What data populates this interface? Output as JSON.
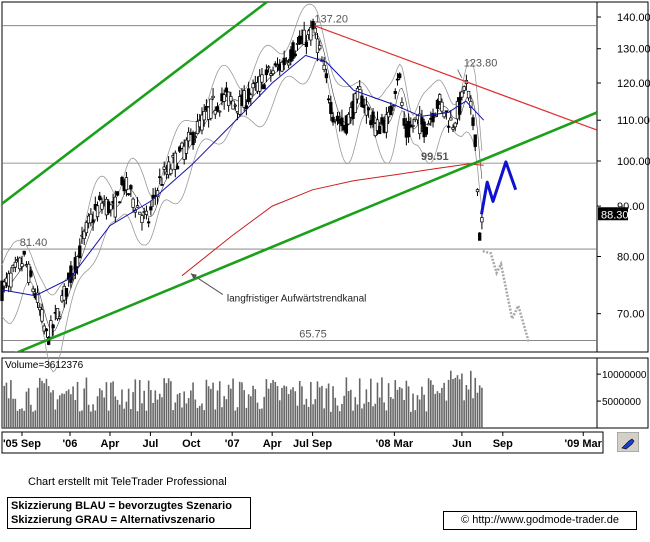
{
  "chart_data": {
    "type": "candlestick",
    "y_scale": "log",
    "ylim": [
      64,
      145
    ],
    "y_ticks": [
      "140.00",
      "130.00",
      "120.00",
      "110.00",
      "100.00",
      "90.00",
      "80.00",
      "70.00"
    ],
    "y_tick_values": [
      140,
      130,
      120,
      110,
      100,
      90,
      80,
      70
    ],
    "x_labels": [
      "'05 Sep",
      "'06",
      "Apr",
      "Jul",
      "Oct",
      "'07",
      "Apr",
      "Jul Sep",
      "'08 Mar",
      "Jun",
      "Sep",
      "'09 Mar"
    ],
    "x_label_dates": [
      "2005-09-15",
      "2006-01-01",
      "2006-04-01",
      "2006-07-01",
      "2006-10-01",
      "2007-01-01",
      "2007-04-01",
      "2007-07-01",
      "2008-01-01",
      "2008-06-01",
      "2008-09-01",
      "2009-03-01"
    ],
    "x_range": [
      "2005-08-01",
      "2009-04-01"
    ],
    "annotations": [
      {
        "label": "137.20",
        "date": "2007-07-05",
        "value": 137.2,
        "kind": "price"
      },
      {
        "label": "123.80",
        "date": "2008-06-05",
        "value": 123.8,
        "kind": "price"
      },
      {
        "label": "99.51",
        "date": "2008-03-01",
        "value": 99.51,
        "kind": "price"
      },
      {
        "label": "81.40",
        "date": "2005-09-10",
        "value": 81.4,
        "kind": "price"
      },
      {
        "label": "65.75",
        "date": "2007-06-01",
        "value": 65.75,
        "kind": "price"
      },
      {
        "label": "langfristiger Aufwärtstrendkanal",
        "date": "2006-12-20",
        "value": 71.5,
        "kind": "text"
      }
    ],
    "horizontal_lines": [
      137.2,
      81.4,
      65.75,
      99.51
    ],
    "current_price": {
      "label": "88.30",
      "value": 88.3
    },
    "trendlines": [
      {
        "name": "channel_upper",
        "color": "#1aa01a",
        "points": [
          [
            "2005-08-01",
            90.5
          ],
          [
            "2007-03-20",
            145
          ]
        ]
      },
      {
        "name": "channel_lower",
        "color": "#1aa01a",
        "points": [
          [
            "2005-08-01",
            63
          ],
          [
            "2009-04-01",
            112
          ]
        ]
      },
      {
        "name": "downtrend",
        "color": "#e03030",
        "points": [
          [
            "2007-07-05",
            137.2
          ],
          [
            "2009-04-01",
            107.5
          ]
        ]
      }
    ],
    "scenario_blue": [
      [
        "2008-07-15",
        88.3
      ],
      [
        "2008-07-28",
        95.2
      ],
      [
        "2008-08-10",
        91.0
      ],
      [
        "2008-09-08",
        99.8
      ],
      [
        "2008-09-30",
        93.5
      ]
    ],
    "scenario_gray": [
      [
        "2008-07-18",
        81.0
      ],
      [
        "2008-08-05",
        80.6
      ],
      [
        "2008-08-18",
        77.0
      ],
      [
        "2008-08-28",
        78.6
      ],
      [
        "2008-09-22",
        69.2
      ],
      [
        "2008-10-06",
        71.3
      ],
      [
        "2008-10-30",
        65.4
      ]
    ],
    "price_keypoints": [
      [
        "2005-08-01",
        74
      ],
      [
        "2005-09-20",
        79.5
      ],
      [
        "2005-10-20",
        72
      ],
      [
        "2005-11-10",
        66
      ],
      [
        "2005-11-25",
        68
      ],
      [
        "2006-01-10",
        78
      ],
      [
        "2006-02-15",
        87
      ],
      [
        "2006-03-15",
        91
      ],
      [
        "2006-04-10",
        89
      ],
      [
        "2006-05-01",
        95
      ],
      [
        "2006-06-01",
        90
      ],
      [
        "2006-06-25",
        86.5
      ],
      [
        "2006-07-20",
        95
      ],
      [
        "2006-09-10",
        102
      ],
      [
        "2006-10-15",
        108
      ],
      [
        "2006-11-20",
        114
      ],
      [
        "2006-12-20",
        116
      ],
      [
        "2007-01-20",
        114
      ],
      [
        "2007-02-20",
        118
      ],
      [
        "2007-03-20",
        122
      ],
      [
        "2007-04-20",
        125
      ],
      [
        "2007-05-20",
        130
      ],
      [
        "2007-06-15",
        133
      ],
      [
        "2007-07-05",
        136
      ],
      [
        "2007-07-25",
        124
      ],
      [
        "2007-08-15",
        112
      ],
      [
        "2007-09-10",
        108
      ],
      [
        "2007-10-15",
        117
      ],
      [
        "2007-11-20",
        108
      ],
      [
        "2007-12-20",
        110
      ],
      [
        "2008-01-10",
        124
      ],
      [
        "2008-01-25",
        106
      ],
      [
        "2008-02-20",
        110
      ],
      [
        "2008-03-10",
        108
      ],
      [
        "2008-04-10",
        115
      ],
      [
        "2008-05-10",
        109
      ],
      [
        "2008-06-01",
        115
      ],
      [
        "2008-06-08",
        121
      ],
      [
        "2008-06-20",
        113
      ],
      [
        "2008-07-01",
        106
      ],
      [
        "2008-07-05",
        96
      ],
      [
        "2008-07-10",
        84
      ],
      [
        "2008-07-15",
        86
      ],
      [
        "2008-07-20",
        88.3
      ]
    ],
    "sma_blue": [
      [
        "2005-08-01",
        74
      ],
      [
        "2005-10-15",
        73
      ],
      [
        "2006-01-01",
        76
      ],
      [
        "2006-04-01",
        86
      ],
      [
        "2006-07-01",
        91
      ],
      [
        "2006-10-01",
        99
      ],
      [
        "2007-01-01",
        109
      ],
      [
        "2007-04-01",
        120
      ],
      [
        "2007-06-15",
        128
      ],
      [
        "2007-08-01",
        126
      ],
      [
        "2007-10-01",
        118
      ],
      [
        "2008-01-01",
        114
      ],
      [
        "2008-03-01",
        111
      ],
      [
        "2008-05-01",
        112
      ],
      [
        "2008-06-10",
        115
      ],
      [
        "2008-07-20",
        110
      ]
    ],
    "sma_red": [
      [
        "2006-09-10",
        76.5
      ],
      [
        "2007-01-01",
        84
      ],
      [
        "2007-04-01",
        90
      ],
      [
        "2007-07-01",
        93.5
      ],
      [
        "2007-10-01",
        95.5
      ],
      [
        "2008-01-01",
        96.8
      ],
      [
        "2008-04-01",
        98.2
      ],
      [
        "2008-06-15",
        99.3
      ],
      [
        "2008-07-20",
        99.0
      ]
    ],
    "volume": {
      "label": "Volume=3612376",
      "ticks": [
        "10000000",
        "5000000"
      ],
      "tick_values": [
        10000000,
        5000000
      ],
      "ylim": [
        0,
        13000000
      ]
    }
  },
  "footer": {
    "credit": "Chart erstellt mit TeleTrader Professional",
    "legend_line1": "Skizzierung BLAU = bevorzugtes Szenario",
    "legend_line2": "Skizzierung GRAU = Alternativszenario",
    "url": "http://www.godmode-trader.de",
    "copyright": "©"
  },
  "colors": {
    "trend_green": "#1aa01a",
    "trend_red": "#e03030",
    "sma_blue": "#1010b0",
    "sma_red": "#cc2020",
    "scenario_blue": "#1010d0",
    "scenario_gray": "#a8a8a8",
    "band_gray": "#9a9a9a",
    "candle": "#000000",
    "volume_bar": "#666666"
  }
}
